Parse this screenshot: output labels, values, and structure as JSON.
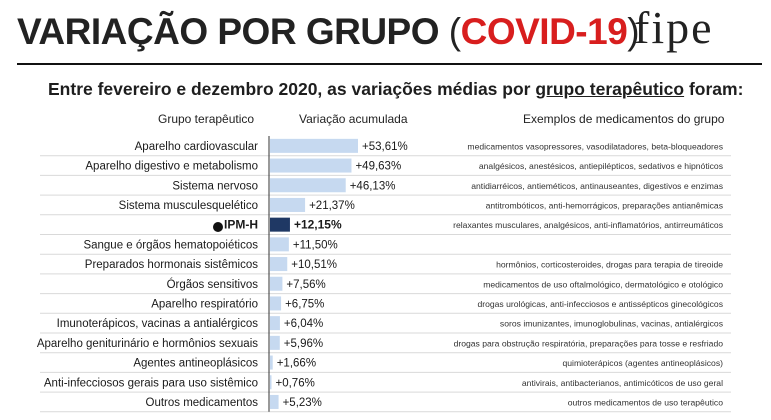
{
  "header": {
    "title_main": "VARIAÇÃO POR GRUPO ",
    "title_paren_open": "(",
    "title_highlight": "COVID-19",
    "title_paren_close": ")",
    "logo_text": "fipe",
    "subtitle_pre": "Entre fevereiro e dezembro 2020, as variações médias por ",
    "subtitle_link": "grupo terapêutico",
    "subtitle_post": " foram:"
  },
  "columns": {
    "group": "Grupo terapêutico",
    "variation": "Variação acumulada",
    "examples": "Exemplos de medicamentos do grupo"
  },
  "colors": {
    "bar": "#c6d9f0",
    "highlight_bar": "#1f3864",
    "covid_red": "#d81e1e",
    "row_line": "#d9d9d9",
    "axis": "#333333"
  },
  "chart_data": {
    "type": "bar",
    "orientation": "horizontal",
    "title": "VARIAÇÃO POR GRUPO (COVID-19)",
    "xlabel": "Variação acumulada",
    "ylabel": "Grupo terapêutico",
    "xlim": [
      0,
      60
    ],
    "unit": "%",
    "highlight_category": "IPM-H",
    "categories": [
      "Aparelho cardiovascular",
      "Aparelho digestivo e metabolismo",
      "Sistema nervoso",
      "Sistema musculesquelético",
      "IPM-H",
      "Sangue e órgãos hematopoiéticos",
      "Preparados hormonais sistêmicos",
      "Órgãos sensitivos",
      "Aparelho respiratório",
      "Imunoterápicos, vacinas a antialérgicos",
      "Aparelho geniturinário e hormônios sexuais",
      "Agentes antineoplásicos",
      "Anti-infecciosos gerais para uso sistêmico",
      "Outros medicamentos"
    ],
    "values": [
      53.61,
      49.63,
      46.13,
      21.37,
      12.15,
      11.5,
      10.51,
      7.56,
      6.75,
      6.04,
      5.96,
      1.66,
      0.76,
      5.23
    ],
    "value_labels": [
      "+53,61%",
      "+49,63%",
      "+46,13%",
      "+21,37%",
      "+12,15%",
      "+11,50%",
      "+10,51%",
      "+7,56%",
      "+6,75%",
      "+6,04%",
      "+5,96%",
      "+1,66%",
      "+0,76%",
      "+5,23%"
    ],
    "examples": [
      "medicamentos vasopressores, vasodilatadores, beta-bloqueadores",
      "analgésicos, anestésicos, antiepilépticos, sedativos e hipnóticos",
      "antidiarréicos, antieméticos, antinauseantes, digestivos e enzimas",
      "antitrombóticos, anti-hemorrágicos, preparações antianêmicas",
      "relaxantes musculares, analgésicos, anti-inflamatórios, antirreumáticos",
      "",
      "hormônios, corticosteroides, drogas para terapia de tireoide",
      "medicamentos de uso oftalmológico, dermatológico e otológico",
      "drogas urológicas, anti-infecciosos e antissépticos ginecológicos",
      "soros imunizantes, imunoglobulinas, vacinas, antialérgicos",
      "drogas para obstrução respiratória, preparações para tosse e resfriado",
      "quimioterápicos (agentes antineoplásicos)",
      "antivirais, antibacterianos, antimicóticos de uso geral",
      "outros medicamentos de uso terapêutico"
    ]
  }
}
